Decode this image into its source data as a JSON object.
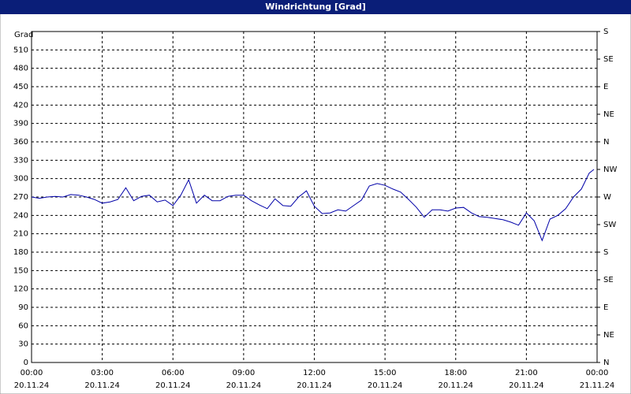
{
  "chart_data": {
    "type": "line",
    "title": "Windrichtung [Grad]",
    "ylabel": "Grad",
    "x": [
      0,
      20,
      40,
      60,
      80,
      100,
      120,
      140,
      160,
      180,
      200,
      220,
      240,
      260,
      280,
      300,
      320,
      340,
      360,
      380,
      400,
      420,
      440,
      460,
      480,
      500,
      520,
      540,
      560,
      580,
      600,
      620,
      640,
      660,
      680,
      700,
      720,
      740,
      760,
      780,
      800,
      820,
      840,
      860,
      880,
      900,
      920,
      940,
      960,
      980,
      1000,
      1020,
      1040,
      1060,
      1080,
      1100,
      1120,
      1140,
      1160,
      1180,
      1200,
      1220,
      1240,
      1260,
      1280,
      1300,
      1320,
      1340,
      1360,
      1380,
      1400,
      1420,
      1432
    ],
    "values": [
      270,
      268,
      270,
      271,
      270,
      274,
      273,
      270,
      266,
      260,
      262,
      266,
      285,
      264,
      271,
      273,
      262,
      265,
      256,
      273,
      298,
      260,
      273,
      264,
      264,
      271,
      273,
      273,
      264,
      257,
      251,
      267,
      256,
      255,
      270,
      280,
      255,
      243,
      244,
      249,
      247,
      256,
      265,
      288,
      292,
      289,
      283,
      278,
      266,
      253,
      237,
      249,
      249,
      247,
      252,
      253,
      244,
      238,
      237,
      235,
      233,
      229,
      224,
      244,
      231,
      199,
      234,
      240,
      251,
      270,
      283,
      309,
      315
    ],
    "color": "#0000a8",
    "xlim": [
      0,
      1440
    ],
    "xticks": [
      {
        "value": 0,
        "label": "00:00"
      },
      {
        "value": 180,
        "label": "03:00"
      },
      {
        "value": 360,
        "label": "06:00"
      },
      {
        "value": 540,
        "label": "09:00"
      },
      {
        "value": 720,
        "label": "12:00"
      },
      {
        "value": 900,
        "label": "15:00"
      },
      {
        "value": 1080,
        "label": "18:00"
      },
      {
        "value": 1260,
        "label": "21:00"
      },
      {
        "value": 1440,
        "label": "00:00"
      }
    ],
    "xtick_dates": [
      "20.11.24",
      "20.11.24",
      "20.11.24",
      "20.11.24",
      "20.11.24",
      "20.11.24",
      "20.11.24",
      "20.11.24",
      "21.11.24"
    ],
    "ylim": [
      0,
      540
    ],
    "yticks": [
      0,
      30,
      60,
      90,
      120,
      150,
      180,
      210,
      240,
      270,
      300,
      330,
      360,
      390,
      420,
      450,
      480,
      510
    ],
    "y2lim": [
      0,
      540
    ],
    "y2ticks": [
      {
        "value": 0,
        "label": "N"
      },
      {
        "value": 45,
        "label": "NE"
      },
      {
        "value": 90,
        "label": "E"
      },
      {
        "value": 135,
        "label": "SE"
      },
      {
        "value": 180,
        "label": "S"
      },
      {
        "value": 225,
        "label": "SW"
      },
      {
        "value": 270,
        "label": "W"
      },
      {
        "value": 315,
        "label": "NW"
      },
      {
        "value": 360,
        "label": "N"
      },
      {
        "value": 405,
        "label": "NE"
      },
      {
        "value": 450,
        "label": "E"
      },
      {
        "value": 495,
        "label": "SE"
      },
      {
        "value": 540,
        "label": "S"
      }
    ],
    "grid": true
  }
}
